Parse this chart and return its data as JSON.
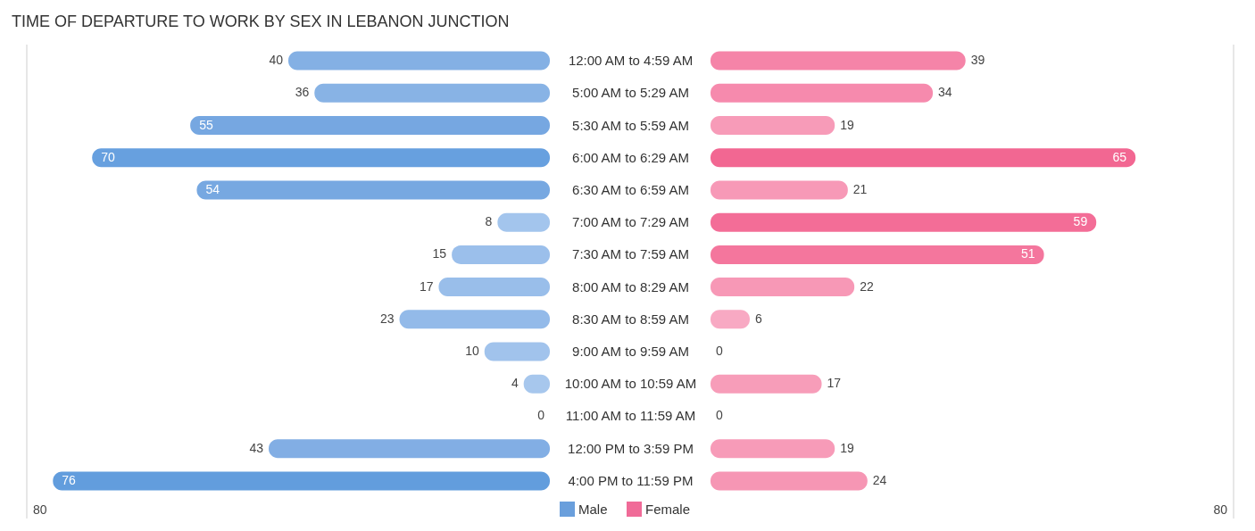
{
  "chart_data": [
    {
      "type": "bar",
      "title": "TIME OF DEPARTURE TO WORK BY SEX IN LEBANON JUNCTION",
      "orientation": "horizontal",
      "categories": [
        "12:00 AM to 4:59 AM",
        "5:00 AM to 5:29 AM",
        "5:30 AM to 5:59 AM",
        "6:00 AM to 6:29 AM",
        "6:30 AM to 6:59 AM",
        "7:00 AM to 7:29 AM",
        "7:30 AM to 7:59 AM",
        "8:00 AM to 8:29 AM",
        "8:30 AM to 8:59 AM",
        "9:00 AM to 9:59 AM",
        "10:00 AM to 10:59 AM",
        "11:00 AM to 11:59 AM",
        "12:00 PM to 3:59 PM",
        "4:00 PM to 11:59 PM"
      ],
      "series": [
        {
          "name": "Male",
          "color": "#6a9fdc",
          "values": [
            40,
            36,
            55,
            70,
            54,
            8,
            15,
            17,
            23,
            10,
            4,
            0,
            43,
            76
          ],
          "colors": [
            "#84b0e4",
            "#88b3e5",
            "#76a7e1",
            "#67a0df",
            "#77a8e1",
            "#a3c5ed",
            "#9bbfeb",
            "#99beea",
            "#93bae9",
            "#a1c3ec",
            "#a7c7ed",
            "#abcaee",
            "#82aee4",
            "#629ddd"
          ]
        }
      ],
      "xlim": [
        80,
        0
      ],
      "annotations": [
        "80"
      ],
      "legend": "bottom right",
      "data_labels": true
    },
    {
      "type": "bar",
      "orientation": "horizontal",
      "categories": [
        null,
        null,
        null,
        null,
        null,
        null,
        null,
        null,
        null,
        null,
        null,
        null,
        null,
        null
      ],
      "series": [
        {
          "name": "Female",
          "color": "#f06b98",
          "values": [
            39,
            34,
            19,
            65,
            21,
            59,
            51,
            22,
            6,
            0,
            17,
            0,
            19,
            24
          ],
          "colors": [
            "#f584a8",
            "#f68aad",
            "#f79bb8",
            "#f26792",
            "#f799b7",
            "#f36d97",
            "#f4769d",
            "#f798b6",
            "#f8a9c3",
            "#f9afc7",
            "#f79db9",
            "#f9afc7",
            "#f79bb8",
            "#f696b4"
          ]
        }
      ],
      "xlim": [
        0,
        80
      ],
      "annotations": [
        "80"
      ],
      "legend": "bottom left",
      "data_labels": true
    }
  ]
}
